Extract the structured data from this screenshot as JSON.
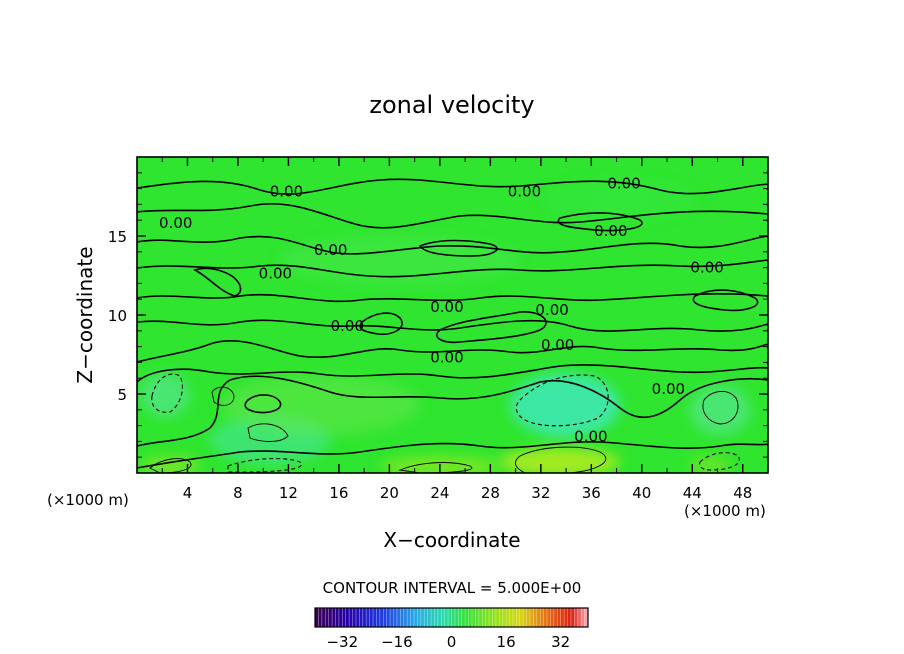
{
  "chart_data": {
    "type": "heatmap",
    "title": "zonal velocity",
    "xlabel": "X−coordinate",
    "ylabel": "Z−coordinate",
    "x_unit_left": "(×1000 m)",
    "x_unit_right": "(×1000 m)",
    "xlim": [
      0,
      50
    ],
    "ylim": [
      0,
      20
    ],
    "x_ticks": [
      4,
      8,
      12,
      16,
      20,
      24,
      28,
      32,
      36,
      40,
      44,
      48
    ],
    "y_ticks": [
      5,
      10,
      15
    ],
    "contour_interval_text": "CONTOUR INTERVAL = 5.000E+00",
    "contour_level_label": "0.00",
    "contour_label_positions": [
      [
        3.5,
        15.5
      ],
      [
        13.5,
        17.5
      ],
      [
        17.5,
        13.8
      ],
      [
        12.5,
        12.3
      ],
      [
        35,
        17.5
      ],
      [
        42.8,
        15.0
      ],
      [
        44,
        18.0
      ],
      [
        51.5,
        12.7
      ],
      [
        19,
        9.0
      ],
      [
        28,
        10.2
      ],
      [
        37.5,
        10.0
      ],
      [
        28,
        7.0
      ],
      [
        38,
        7.8
      ],
      [
        48,
        5.0
      ],
      [
        41,
        2.0
      ]
    ],
    "colorbar": {
      "range": [
        -40,
        40
      ],
      "tick_labels": [
        "−32",
        "−16",
        "0",
        "16",
        "32"
      ],
      "tick_values": [
        -32,
        -16,
        0,
        16,
        32
      ]
    },
    "colors": {
      "field_base": "#2ee62e",
      "frame": "#000000"
    },
    "grid": false
  }
}
